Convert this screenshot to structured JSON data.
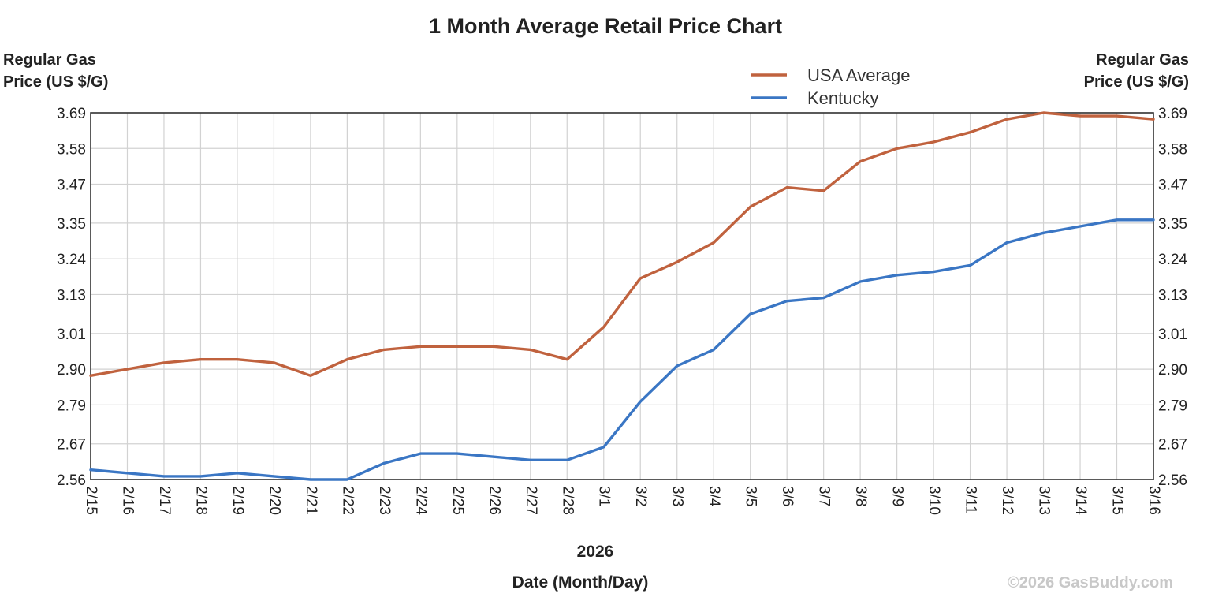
{
  "chart_data": {
    "type": "line",
    "title": "1 Month Average Retail Price Chart",
    "ylabel_left": [
      "Regular Gas",
      "Price (US $/G)"
    ],
    "ylabel_right": [
      "Regular Gas",
      "Price (US $/G)"
    ],
    "x_year": "2026",
    "xlabel": "Date (Month/Day)",
    "credit": "©2026 GasBuddy.com",
    "y_ticks": [
      "2.56",
      "2.67",
      "2.79",
      "2.90",
      "3.01",
      "3.13",
      "3.24",
      "3.35",
      "3.47",
      "3.58",
      "3.69"
    ],
    "ylim": [
      2.56,
      3.69
    ],
    "x_ticks": [
      "2/15",
      "2/16",
      "2/17",
      "2/18",
      "2/19",
      "2/20",
      "2/21",
      "2/22",
      "2/23",
      "2/24",
      "2/25",
      "2/26",
      "2/27",
      "2/28",
      "3/1",
      "3/2",
      "3/3",
      "3/4",
      "3/5",
      "3/6",
      "3/7",
      "3/8",
      "3/9",
      "3/10",
      "3/11",
      "3/12",
      "3/13",
      "3/14",
      "3/15",
      "3/16"
    ],
    "grid": true,
    "legend_position": "top-right",
    "series": [
      {
        "name": "USA Average",
        "color": "#c0623e",
        "points": [
          [
            "2/15",
            2.88
          ],
          [
            "2/16",
            2.9
          ],
          [
            "2/17",
            2.92
          ],
          [
            "2/18",
            2.93
          ],
          [
            "2/19",
            2.93
          ],
          [
            "2/20",
            2.92
          ],
          [
            "2/21",
            2.88
          ],
          [
            "2/22",
            2.93
          ],
          [
            "2/23",
            2.96
          ],
          [
            "2/24",
            2.97
          ],
          [
            "2/25",
            2.97
          ],
          [
            "2/26",
            2.97
          ],
          [
            "2/27",
            2.96
          ],
          [
            "2/28",
            2.93
          ],
          [
            "3/1",
            3.03
          ],
          [
            "3/2",
            3.18
          ],
          [
            "3/3",
            3.23
          ],
          [
            "3/4",
            3.29
          ],
          [
            "3/5",
            3.4
          ],
          [
            "3/6",
            3.46
          ],
          [
            "3/7",
            3.45
          ],
          [
            "3/8",
            3.54
          ],
          [
            "3/9",
            3.58
          ],
          [
            "3/10",
            3.6
          ],
          [
            "3/11",
            3.63
          ],
          [
            "3/12",
            3.67
          ],
          [
            "3/13",
            3.69
          ],
          [
            "3/14",
            3.68
          ],
          [
            "3/15",
            3.68
          ],
          [
            "3/16",
            3.67
          ]
        ]
      },
      {
        "name": "Kentucky",
        "color": "#3a76c4",
        "points": [
          [
            "2/15",
            2.59
          ],
          [
            "2/16",
            2.58
          ],
          [
            "2/17",
            2.57
          ],
          [
            "2/18",
            2.57
          ],
          [
            "2/19",
            2.58
          ],
          [
            "2/20",
            2.57
          ],
          [
            "2/21",
            2.56
          ],
          [
            "2/22",
            2.56
          ],
          [
            "2/23",
            2.61
          ],
          [
            "2/24",
            2.64
          ],
          [
            "2/25",
            2.64
          ],
          [
            "2/26",
            2.63
          ],
          [
            "2/27",
            2.62
          ],
          [
            "2/28",
            2.62
          ],
          [
            "3/1",
            2.66
          ],
          [
            "3/2",
            2.8
          ],
          [
            "3/3",
            2.91
          ],
          [
            "3/4",
            2.96
          ],
          [
            "3/5",
            3.07
          ],
          [
            "3/6",
            3.11
          ],
          [
            "3/7",
            3.12
          ],
          [
            "3/8",
            3.17
          ],
          [
            "3/9",
            3.19
          ],
          [
            "3/10",
            3.2
          ],
          [
            "3/11",
            3.22
          ],
          [
            "3/12",
            3.29
          ],
          [
            "3/13",
            3.32
          ],
          [
            "3/14",
            3.34
          ],
          [
            "3/15",
            3.36
          ],
          [
            "3/16",
            3.36
          ]
        ]
      }
    ]
  }
}
